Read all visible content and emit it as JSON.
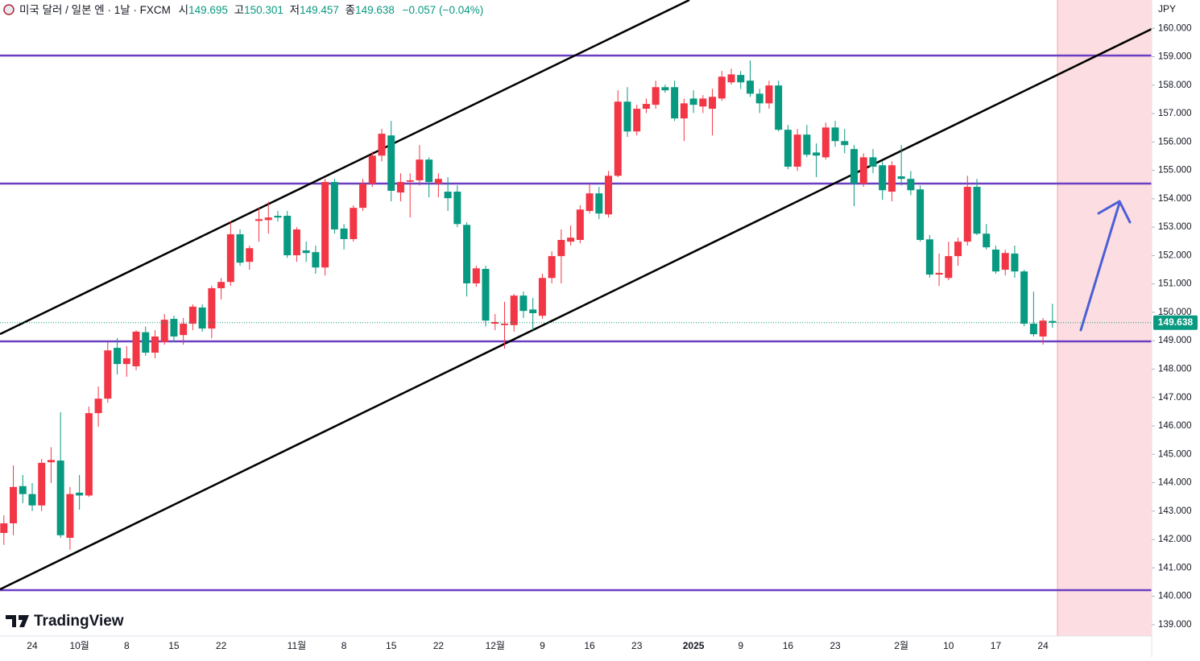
{
  "chart_data": {
    "type": "candlestick",
    "title": "미국 달러 / 일본 엔 · 1날 · FXCM",
    "header_labels": {
      "open": "시",
      "high": "고",
      "low": "저",
      "close": "종"
    },
    "change": "−0.057 (−0.04%)",
    "currency": "JPY",
    "logo": "TradingView",
    "up_color": "#f23645",
    "down_color": "#089981",
    "categories": [
      null,
      null,
      null,
      "24",
      null,
      null,
      null,
      null,
      "10월",
      null,
      null,
      null,
      null,
      "8",
      null,
      null,
      null,
      null,
      "15",
      null,
      null,
      null,
      null,
      "22",
      null,
      null,
      null,
      null,
      null,
      null,
      null,
      "11월",
      null,
      null,
      null,
      null,
      "8",
      null,
      null,
      null,
      null,
      "15",
      null,
      null,
      null,
      null,
      "22",
      null,
      null,
      null,
      null,
      null,
      "12월",
      null,
      null,
      null,
      null,
      "9",
      null,
      null,
      null,
      null,
      "16",
      null,
      null,
      null,
      null,
      "23",
      null,
      null,
      null,
      null,
      null,
      "2025",
      null,
      null,
      null,
      null,
      "9",
      null,
      null,
      null,
      null,
      "16",
      null,
      null,
      null,
      null,
      "23",
      null,
      null,
      null,
      null,
      null,
      null,
      "2월",
      null,
      null,
      null,
      null,
      "10",
      null,
      null,
      null,
      null,
      "17",
      null,
      null,
      null,
      null,
      "24",
      null
    ],
    "open": [
      142.23,
      142.57,
      143.88,
      143.6,
      143.2,
      144.72,
      144.78,
      142.06,
      143.65,
      143.55,
      146.45,
      146.96,
      148.75,
      148.18,
      148.1,
      149.3,
      148.58,
      148.95,
      149.77,
      149.2,
      149.6,
      150.17,
      149.43,
      150.85,
      151.07,
      152.75,
      151.78,
      153.22,
      153.25,
      153.4,
      153.4,
      152.01,
      152.18,
      152.12,
      151.58,
      154.59,
      152.95,
      152.58,
      153.68,
      154.53,
      155.52,
      156.23,
      154.22,
      154.6,
      154.65,
      155.38,
      154.53,
      154.25,
      154.25,
      153.08,
      151.02,
      151.53,
      149.6,
      149.55,
      149.55,
      150.59,
      150.1,
      149.88,
      151.21,
      151.98,
      152.49,
      152.55,
      153.57,
      154.19,
      153.45,
      154.81,
      157.42,
      156.37,
      157.17,
      157.31,
      157.93,
      157.93,
      156.83,
      157.53,
      157.25,
      157.17,
      157.53,
      158.1,
      158.36,
      158.16,
      157.7,
      157.36,
      157.99,
      156.43,
      155.13,
      156.26,
      155.63,
      155.46,
      156.51,
      156.03,
      155.75,
      154.53,
      155.46,
      155.18,
      154.25,
      154.79,
      154.7,
      154.33,
      152.57,
      151.33,
      151.21,
      151.98,
      152.49,
      154.42,
      152.77,
      152.21,
      151.5,
      152.07,
      151.44,
      149.6,
      149.15,
      149.695
    ],
    "high": [
      142.85,
      144.61,
      144.27,
      143.99,
      144.84,
      145.25,
      146.48,
      143.85,
      144.27,
      146.68,
      147.39,
      148.95,
      149.09,
      148.81,
      149.37,
      149.5,
      149.37,
      149.94,
      149.88,
      149.8,
      150.28,
      150.28,
      150.93,
      151.21,
      153.2,
      152.92,
      152.35,
      153.68,
      153.9,
      153.57,
      153.57,
      153.0,
      152.49,
      152.35,
      154.7,
      154.7,
      153.11,
      153.77,
      154.7,
      155.66,
      156.46,
      156.74,
      154.9,
      154.9,
      155.89,
      155.46,
      154.9,
      154.76,
      154.47,
      153.17,
      151.64,
      151.64,
      149.94,
      150.37,
      150.65,
      150.73,
      150.51,
      151.36,
      152.15,
      152.92,
      153.06,
      153.77,
      154.53,
      154.42,
      154.98,
      157.82,
      157.93,
      157.31,
      157.53,
      158.16,
      158.02,
      158.16,
      157.53,
      157.82,
      157.65,
      157.87,
      158.5,
      158.58,
      158.5,
      158.87,
      157.87,
      158.16,
      158.16,
      156.6,
      156.46,
      156.6,
      155.95,
      156.68,
      156.74,
      156.46,
      155.89,
      155.6,
      155.75,
      155.32,
      155.32,
      155.89,
      154.98,
      154.47,
      152.72,
      152.07,
      152.49,
      152.63,
      154.81,
      154.7,
      153.11,
      152.35,
      152.21,
      152.35,
      151.5,
      150.73,
      149.8,
      150.301
    ],
    "low": [
      141.81,
      142.15,
      143.28,
      143.0,
      143.0,
      143.99,
      142.06,
      141.64,
      143.05,
      143.5,
      145.97,
      146.82,
      147.81,
      147.73,
      147.96,
      148.47,
      148.38,
      148.86,
      148.95,
      148.86,
      149.37,
      149.32,
      149.09,
      150.45,
      150.93,
      151.64,
      151.5,
      152.49,
      152.77,
      153.2,
      151.92,
      151.78,
      151.78,
      151.36,
      151.3,
      152.77,
      152.21,
      152.49,
      153.57,
      154.42,
      155.32,
      153.91,
      153.91,
      153.34,
      154.47,
      154.05,
      154.05,
      153.57,
      153.0,
      150.56,
      150.9,
      149.51,
      149.37,
      148.72,
      149.32,
      149.8,
      149.37,
      149.77,
      151.02,
      151.02,
      152.35,
      152.43,
      153.48,
      153.28,
      153.34,
      154.76,
      156.18,
      156.23,
      157.02,
      157.17,
      157.73,
      156.74,
      156.03,
      157.02,
      157.02,
      156.23,
      157.45,
      158.02,
      157.87,
      157.59,
      157.02,
      157.17,
      156.37,
      155.04,
      154.98,
      155.46,
      154.76,
      155.38,
      155.83,
      155.6,
      153.74,
      154.42,
      154.9,
      153.96,
      153.91,
      154.47,
      154.13,
      152.49,
      151.22,
      150.93,
      151.13,
      151.64,
      152.35,
      152.72,
      152.21,
      151.36,
      151.3,
      151.22,
      149.51,
      149.15,
      148.86,
      149.457
    ],
    "close": [
      142.57,
      143.85,
      143.6,
      143.2,
      144.7,
      144.8,
      142.15,
      143.6,
      143.55,
      146.45,
      146.96,
      148.66,
      148.18,
      148.38,
      149.32,
      148.58,
      149.15,
      149.74,
      149.15,
      149.6,
      150.2,
      149.43,
      150.85,
      151.07,
      152.75,
      151.75,
      152.26,
      153.28,
      153.34,
      153.34,
      152.01,
      152.92,
      152.09,
      151.58,
      154.59,
      152.92,
      152.58,
      153.68,
      154.53,
      155.52,
      156.29,
      154.28,
      154.59,
      154.65,
      155.38,
      154.59,
      154.7,
      154.02,
      153.11,
      151.02,
      151.55,
      149.71,
      149.66,
      149.6,
      150.59,
      150.05,
      149.97,
      151.21,
      151.98,
      152.55,
      152.63,
      153.62,
      154.19,
      153.48,
      154.81,
      157.42,
      156.37,
      157.17,
      157.34,
      157.93,
      157.82,
      156.83,
      157.36,
      157.31,
      157.53,
      157.59,
      158.3,
      158.38,
      158.1,
      157.7,
      157.36,
      157.99,
      156.43,
      155.13,
      156.26,
      155.55,
      155.52,
      156.51,
      156.03,
      155.89,
      154.53,
      155.46,
      155.13,
      154.3,
      155.18,
      154.7,
      154.3,
      152.55,
      151.33,
      151.39,
      151.98,
      152.49,
      154.42,
      152.77,
      152.29,
      151.44,
      152.09,
      151.44,
      149.6,
      149.23,
      149.71,
      149.638
    ],
    "ylim": [
      138.6,
      161.0
    ],
    "yticks": [
      {
        "value": 139,
        "label": "139.000"
      },
      {
        "value": 140,
        "label": "140.000"
      },
      {
        "value": 141,
        "label": "141.000"
      },
      {
        "value": 142,
        "label": "142.000"
      },
      {
        "value": 143,
        "label": "143.000"
      },
      {
        "value": 144,
        "label": "144.000"
      },
      {
        "value": 145,
        "label": "145.000"
      },
      {
        "value": 146,
        "label": "146.000"
      },
      {
        "value": 147,
        "label": "147.000"
      },
      {
        "value": 148,
        "label": "148.000"
      },
      {
        "value": 149,
        "label": "149.000"
      },
      {
        "value": 150,
        "label": "150.000"
      },
      {
        "value": 151,
        "label": "151.000"
      },
      {
        "value": 152,
        "label": "152.000"
      },
      {
        "value": 153,
        "label": "153.000"
      },
      {
        "value": 154,
        "label": "154.000"
      },
      {
        "value": 155,
        "label": "155.000"
      },
      {
        "value": 156,
        "label": "156.000"
      },
      {
        "value": 157,
        "label": "157.000"
      },
      {
        "value": 158,
        "label": "158.000"
      },
      {
        "value": 159,
        "label": "159.000"
      },
      {
        "value": 160,
        "label": "160.000"
      }
    ]
  }
}
